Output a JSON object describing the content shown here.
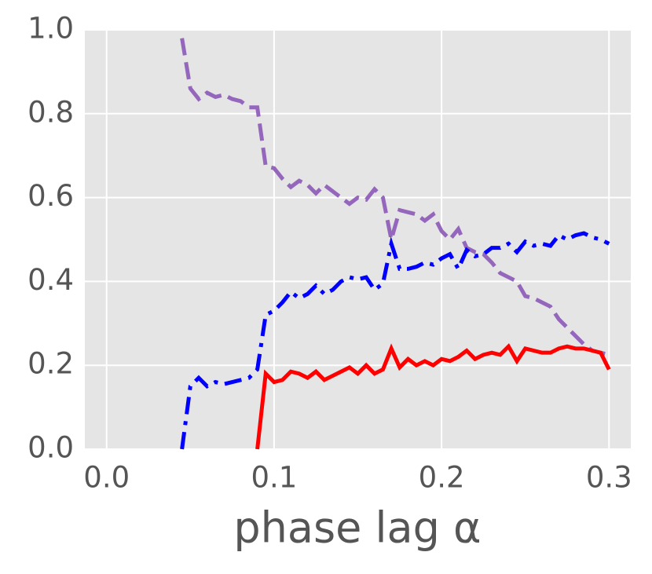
{
  "chart_data": {
    "type": "line",
    "xlabel": "phase lag α",
    "x": [
      0.045,
      0.05,
      0.055,
      0.06,
      0.065,
      0.07,
      0.075,
      0.08,
      0.085,
      0.09,
      0.095,
      0.1,
      0.105,
      0.11,
      0.115,
      0.12,
      0.125,
      0.13,
      0.135,
      0.14,
      0.145,
      0.15,
      0.155,
      0.16,
      0.165,
      0.17,
      0.175,
      0.18,
      0.185,
      0.19,
      0.195,
      0.2,
      0.205,
      0.21,
      0.215,
      0.22,
      0.225,
      0.23,
      0.235,
      0.24,
      0.245,
      0.25,
      0.255,
      0.26,
      0.265,
      0.27,
      0.275,
      0.28,
      0.285,
      0.29,
      0.295,
      0.3
    ],
    "series": [
      {
        "color": "#9467bd",
        "linestyle": "dashed",
        "values": [
          0.98,
          0.86,
          0.835,
          0.85,
          0.84,
          0.845,
          0.835,
          0.83,
          0.815,
          0.815,
          0.675,
          0.67,
          0.645,
          0.625,
          0.64,
          0.63,
          0.61,
          0.63,
          0.615,
          0.6,
          0.585,
          0.6,
          0.595,
          0.62,
          0.6,
          0.5,
          0.57,
          0.565,
          0.56,
          0.545,
          0.56,
          0.52,
          0.5,
          0.525,
          0.48,
          0.47,
          0.465,
          0.445,
          0.42,
          0.41,
          0.4,
          0.365,
          0.36,
          0.35,
          0.34,
          0.31,
          0.29,
          0.27,
          0.25,
          0.235,
          0.23,
          0.225
        ]
      },
      {
        "color": "#0000ff",
        "linestyle": "dashdot",
        "values": [
          0,
          0.15,
          0.17,
          0.15,
          0.16,
          0.155,
          0.16,
          0.165,
          0.17,
          0.19,
          0.32,
          0.33,
          0.35,
          0.375,
          0.36,
          0.37,
          0.39,
          0.37,
          0.38,
          0.4,
          0.41,
          0.405,
          0.41,
          0.38,
          0.395,
          0.49,
          0.43,
          0.43,
          0.435,
          0.445,
          0.44,
          0.455,
          0.465,
          0.43,
          0.475,
          0.46,
          0.465,
          0.48,
          0.48,
          0.49,
          0.47,
          0.495,
          0.485,
          0.49,
          0.485,
          0.51,
          0.5,
          0.51,
          0.515,
          0.505,
          0.5,
          0.49
        ]
      },
      {
        "color": "#ff0000",
        "linestyle": "solid",
        "values": [
          null,
          null,
          null,
          null,
          null,
          null,
          null,
          null,
          null,
          0,
          0.18,
          0.16,
          0.165,
          0.185,
          0.18,
          0.17,
          0.185,
          0.165,
          0.175,
          0.185,
          0.195,
          0.18,
          0.2,
          0.18,
          0.19,
          0.24,
          0.195,
          0.215,
          0.2,
          0.21,
          0.2,
          0.215,
          0.21,
          0.22,
          0.235,
          0.215,
          0.225,
          0.23,
          0.225,
          0.245,
          0.21,
          0.24,
          0.235,
          0.23,
          0.23,
          0.24,
          0.245,
          0.24,
          0.24,
          0.235,
          0.23,
          0.19
        ]
      }
    ],
    "xlim": [
      -0.013,
      0.313
    ],
    "xticks": [
      {
        "value": 0,
        "label": "0.0"
      },
      0.1,
      0.2,
      0.3
    ],
    "ylim": [
      0,
      1
    ],
    "yticks": [
      {
        "value": 0,
        "label": "0.0"
      },
      0.2,
      0.4,
      0.6,
      0.8,
      {
        "value": 1,
        "label": "1.0"
      }
    ],
    "grid": true,
    "background": "#e5e5e5",
    "gridcolor": "#ffffff"
  }
}
